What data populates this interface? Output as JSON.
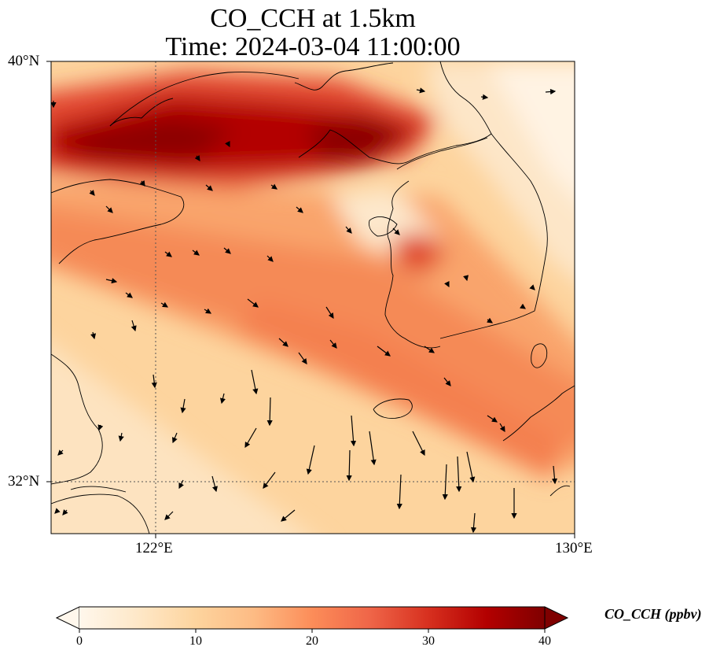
{
  "title_line1": "CO_CCH at 1.5km",
  "title_line2": "Time: 2024-03-04 11:00:00",
  "map": {
    "lon_range": [
      119.5,
      130
    ],
    "lat_range": [
      31,
      40
    ],
    "lon_ticks": [
      {
        "value": 122,
        "label": "122°E"
      },
      {
        "value": 130,
        "label": "130°E"
      }
    ],
    "lat_ticks": [
      {
        "value": 40,
        "label": "40°N"
      },
      {
        "value": 32,
        "label": "32°N"
      }
    ],
    "gridlines": "dotted at 122°E and 32°N",
    "colormap": "OrRd",
    "wind_vectors": "black arrows",
    "coastlines": true
  },
  "colorbar": {
    "min": 0,
    "max": 40,
    "ticks": [
      "0",
      "10",
      "20",
      "30",
      "40"
    ],
    "extend": "both",
    "label": "CO_CCH (ppbv)"
  },
  "colors": {
    "low": "#fff7ec",
    "mid": "#fdbb84",
    "high": "#7f0000",
    "arrow": "#000000"
  }
}
